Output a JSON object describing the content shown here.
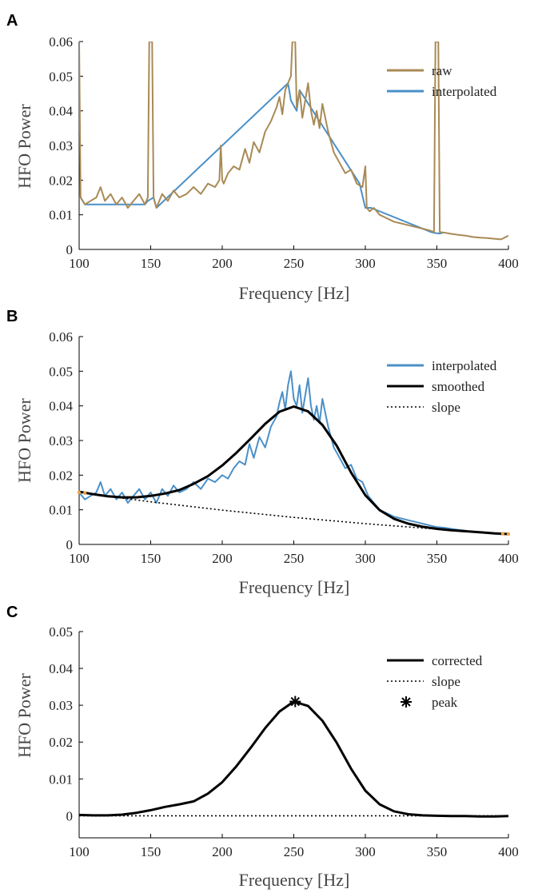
{
  "chart_data": [
    {
      "panel": "A",
      "type": "line",
      "xlabel": "Frequency [Hz]",
      "ylabel": "HFO Power",
      "xlim": [
        100,
        400
      ],
      "ylim": [
        0,
        0.06
      ],
      "xticks": [
        "100",
        "150",
        "200",
        "250",
        "300",
        "350",
        "400"
      ],
      "yticks": [
        "0",
        "0.01",
        "0.02",
        "0.03",
        "0.04",
        "0.05",
        "0.06"
      ],
      "legend_position": "top-right",
      "series": [
        {
          "name": "raw",
          "color": "#a88a55",
          "style": "solid",
          "x": [
            100,
            101,
            104,
            108,
            112,
            115,
            118,
            122,
            126,
            130,
            134,
            138,
            142,
            146,
            148,
            149,
            149.5,
            150.5,
            151,
            152,
            154,
            158,
            162,
            166,
            170,
            175,
            180,
            185,
            190,
            195,
            198,
            199,
            200,
            201,
            204,
            208,
            212,
            216,
            219,
            222,
            226,
            230,
            234,
            238,
            240,
            242,
            244,
            246,
            248,
            249,
            249.5,
            250.5,
            251,
            252,
            254,
            256,
            258,
            260,
            262,
            264,
            266,
            268,
            270,
            274,
            278,
            282,
            286,
            290,
            294,
            298,
            300,
            301,
            303,
            306,
            310,
            315,
            320,
            325,
            330,
            335,
            340,
            345,
            348,
            349,
            349.5,
            350.5,
            351,
            352,
            356,
            360,
            365,
            370,
            375,
            380,
            385,
            390,
            395,
            400
          ],
          "values": [
            0.06,
            0.015,
            0.013,
            0.014,
            0.015,
            0.018,
            0.014,
            0.016,
            0.013,
            0.015,
            0.012,
            0.014,
            0.016,
            0.013,
            0.015,
            0.06,
            0.06,
            0.06,
            0.06,
            0.015,
            0.012,
            0.016,
            0.014,
            0.017,
            0.015,
            0.016,
            0.018,
            0.016,
            0.019,
            0.018,
            0.02,
            0.03,
            0.02,
            0.019,
            0.022,
            0.024,
            0.023,
            0.029,
            0.025,
            0.031,
            0.028,
            0.034,
            0.037,
            0.041,
            0.044,
            0.039,
            0.046,
            0.048,
            0.05,
            0.06,
            0.06,
            0.06,
            0.06,
            0.041,
            0.046,
            0.038,
            0.043,
            0.048,
            0.04,
            0.036,
            0.04,
            0.035,
            0.042,
            0.034,
            0.028,
            0.025,
            0.022,
            0.023,
            0.019,
            0.018,
            0.024,
            0.012,
            0.011,
            0.012,
            0.01,
            0.009,
            0.008,
            0.0075,
            0.007,
            0.0065,
            0.006,
            0.0055,
            0.005,
            0.06,
            0.06,
            0.06,
            0.06,
            0.005,
            0.0048,
            0.0045,
            0.0042,
            0.004,
            0.0036,
            0.0034,
            0.0033,
            0.0031,
            0.0029,
            0.004
          ]
        },
        {
          "name": "interpolated",
          "color": "#4a90c8",
          "style": "solid",
          "x": [
            100,
            101,
            104,
            146,
            148,
            152,
            154,
            246,
            248,
            252,
            254,
            296,
            300,
            304,
            346,
            348,
            352,
            354
          ],
          "values": [
            0.015,
            0.015,
            0.013,
            0.013,
            0.014,
            0.015,
            0.012,
            0.048,
            0.043,
            0.04,
            0.046,
            0.019,
            0.012,
            0.012,
            0.005,
            0.0048,
            0.0046,
            0.0048
          ]
        }
      ]
    },
    {
      "panel": "B",
      "type": "line",
      "xlabel": "Frequency [Hz]",
      "ylabel": "HFO Power",
      "xlim": [
        100,
        400
      ],
      "ylim": [
        0,
        0.06
      ],
      "xticks": [
        "100",
        "150",
        "200",
        "250",
        "300",
        "350",
        "400"
      ],
      "yticks": [
        "0",
        "0.01",
        "0.02",
        "0.03",
        "0.04",
        "0.05",
        "0.06"
      ],
      "legend_position": "top-right",
      "series": [
        {
          "name": "interpolated",
          "color": "#4a90c8",
          "style": "solid",
          "x": [
            100,
            104,
            108,
            112,
            115,
            118,
            122,
            126,
            130,
            134,
            138,
            142,
            146,
            150,
            154,
            158,
            162,
            166,
            170,
            175,
            180,
            185,
            190,
            195,
            200,
            204,
            208,
            212,
            216,
            219,
            222,
            226,
            230,
            234,
            238,
            240,
            242,
            244,
            246,
            248,
            250,
            252,
            254,
            256,
            258,
            260,
            262,
            264,
            266,
            268,
            270,
            274,
            278,
            282,
            286,
            290,
            294,
            298,
            302,
            306,
            310,
            315,
            320,
            325,
            330,
            335,
            340,
            345,
            350,
            356,
            360,
            365,
            370,
            375,
            380,
            385,
            390,
            395,
            400
          ],
          "values": [
            0.015,
            0.013,
            0.014,
            0.015,
            0.018,
            0.014,
            0.016,
            0.013,
            0.015,
            0.012,
            0.014,
            0.016,
            0.013,
            0.015,
            0.012,
            0.016,
            0.014,
            0.017,
            0.015,
            0.016,
            0.018,
            0.016,
            0.019,
            0.018,
            0.02,
            0.019,
            0.022,
            0.024,
            0.023,
            0.029,
            0.025,
            0.031,
            0.028,
            0.034,
            0.037,
            0.041,
            0.044,
            0.039,
            0.046,
            0.05,
            0.042,
            0.04,
            0.046,
            0.038,
            0.043,
            0.048,
            0.04,
            0.036,
            0.04,
            0.035,
            0.042,
            0.034,
            0.028,
            0.025,
            0.022,
            0.023,
            0.019,
            0.018,
            0.014,
            0.012,
            0.01,
            0.009,
            0.008,
            0.0075,
            0.007,
            0.0065,
            0.006,
            0.0055,
            0.005,
            0.0048,
            0.0045,
            0.0042,
            0.004,
            0.0036,
            0.0034,
            0.0033,
            0.0031,
            0.0029,
            0.003
          ]
        },
        {
          "name": "smoothed",
          "color": "#000000",
          "style": "solid",
          "x": [
            100,
            110,
            120,
            130,
            140,
            150,
            160,
            170,
            180,
            190,
            200,
            210,
            220,
            230,
            240,
            250,
            260,
            270,
            280,
            290,
            300,
            310,
            320,
            330,
            340,
            350,
            360,
            370,
            380,
            390,
            400
          ],
          "values": [
            0.0152,
            0.0145,
            0.0139,
            0.0136,
            0.0136,
            0.014,
            0.0147,
            0.0157,
            0.0175,
            0.0197,
            0.0228,
            0.0265,
            0.0306,
            0.0348,
            0.0383,
            0.0398,
            0.0384,
            0.0345,
            0.0285,
            0.0208,
            0.0142,
            0.0099,
            0.0074,
            0.006,
            0.0051,
            0.0045,
            0.0041,
            0.0038,
            0.0035,
            0.0032,
            0.003
          ]
        },
        {
          "name": "slope",
          "color": "#000000",
          "style": "dotted",
          "x": [
            100,
            150,
            200,
            250,
            300,
            350,
            400
          ],
          "values": [
            0.015,
            0.0123,
            0.0099,
            0.0078,
            0.006,
            0.0044,
            0.003
          ]
        }
      ],
      "markers": {
        "color": "#f0a040",
        "x": [
          100,
          104,
          396,
          400
        ],
        "values": [
          0.015,
          0.0148,
          0.0031,
          0.003
        ]
      }
    },
    {
      "panel": "C",
      "type": "line",
      "xlabel": "Frequency [Hz]",
      "ylabel": "HFO Power",
      "xlim": [
        100,
        400
      ],
      "ylim": [
        -0.006,
        0.05
      ],
      "xticks": [
        "100",
        "150",
        "200",
        "250",
        "300",
        "350",
        "400"
      ],
      "yticks": [
        "0",
        "0.01",
        "0.02",
        "0.03",
        "0.04",
        "0.05"
      ],
      "legend_position": "top-right",
      "series": [
        {
          "name": "corrected",
          "color": "#000000",
          "style": "solid",
          "x": [
            100,
            110,
            120,
            130,
            140,
            150,
            160,
            170,
            180,
            190,
            200,
            210,
            220,
            230,
            240,
            250,
            260,
            270,
            280,
            290,
            300,
            310,
            320,
            330,
            340,
            350,
            360,
            370,
            380,
            390,
            400
          ],
          "values": [
            0.0002,
            0.0001,
            0.0001,
            0.0003,
            0.0008,
            0.0015,
            0.0024,
            0.0031,
            0.0039,
            0.006,
            0.0091,
            0.0135,
            0.0185,
            0.0238,
            0.0283,
            0.031,
            0.0298,
            0.0258,
            0.0198,
            0.0128,
            0.0068,
            0.0031,
            0.0012,
            0.0004,
            0.0001,
            0.0,
            -0.0001,
            -0.0001,
            -0.0002,
            -0.0002,
            -0.0001
          ]
        },
        {
          "name": "slope",
          "color": "#000000",
          "style": "dotted",
          "x": [
            100,
            400
          ],
          "values": [
            0,
            0
          ]
        }
      ],
      "peak": {
        "name": "peak",
        "x": 251,
        "value": 0.031
      }
    }
  ]
}
